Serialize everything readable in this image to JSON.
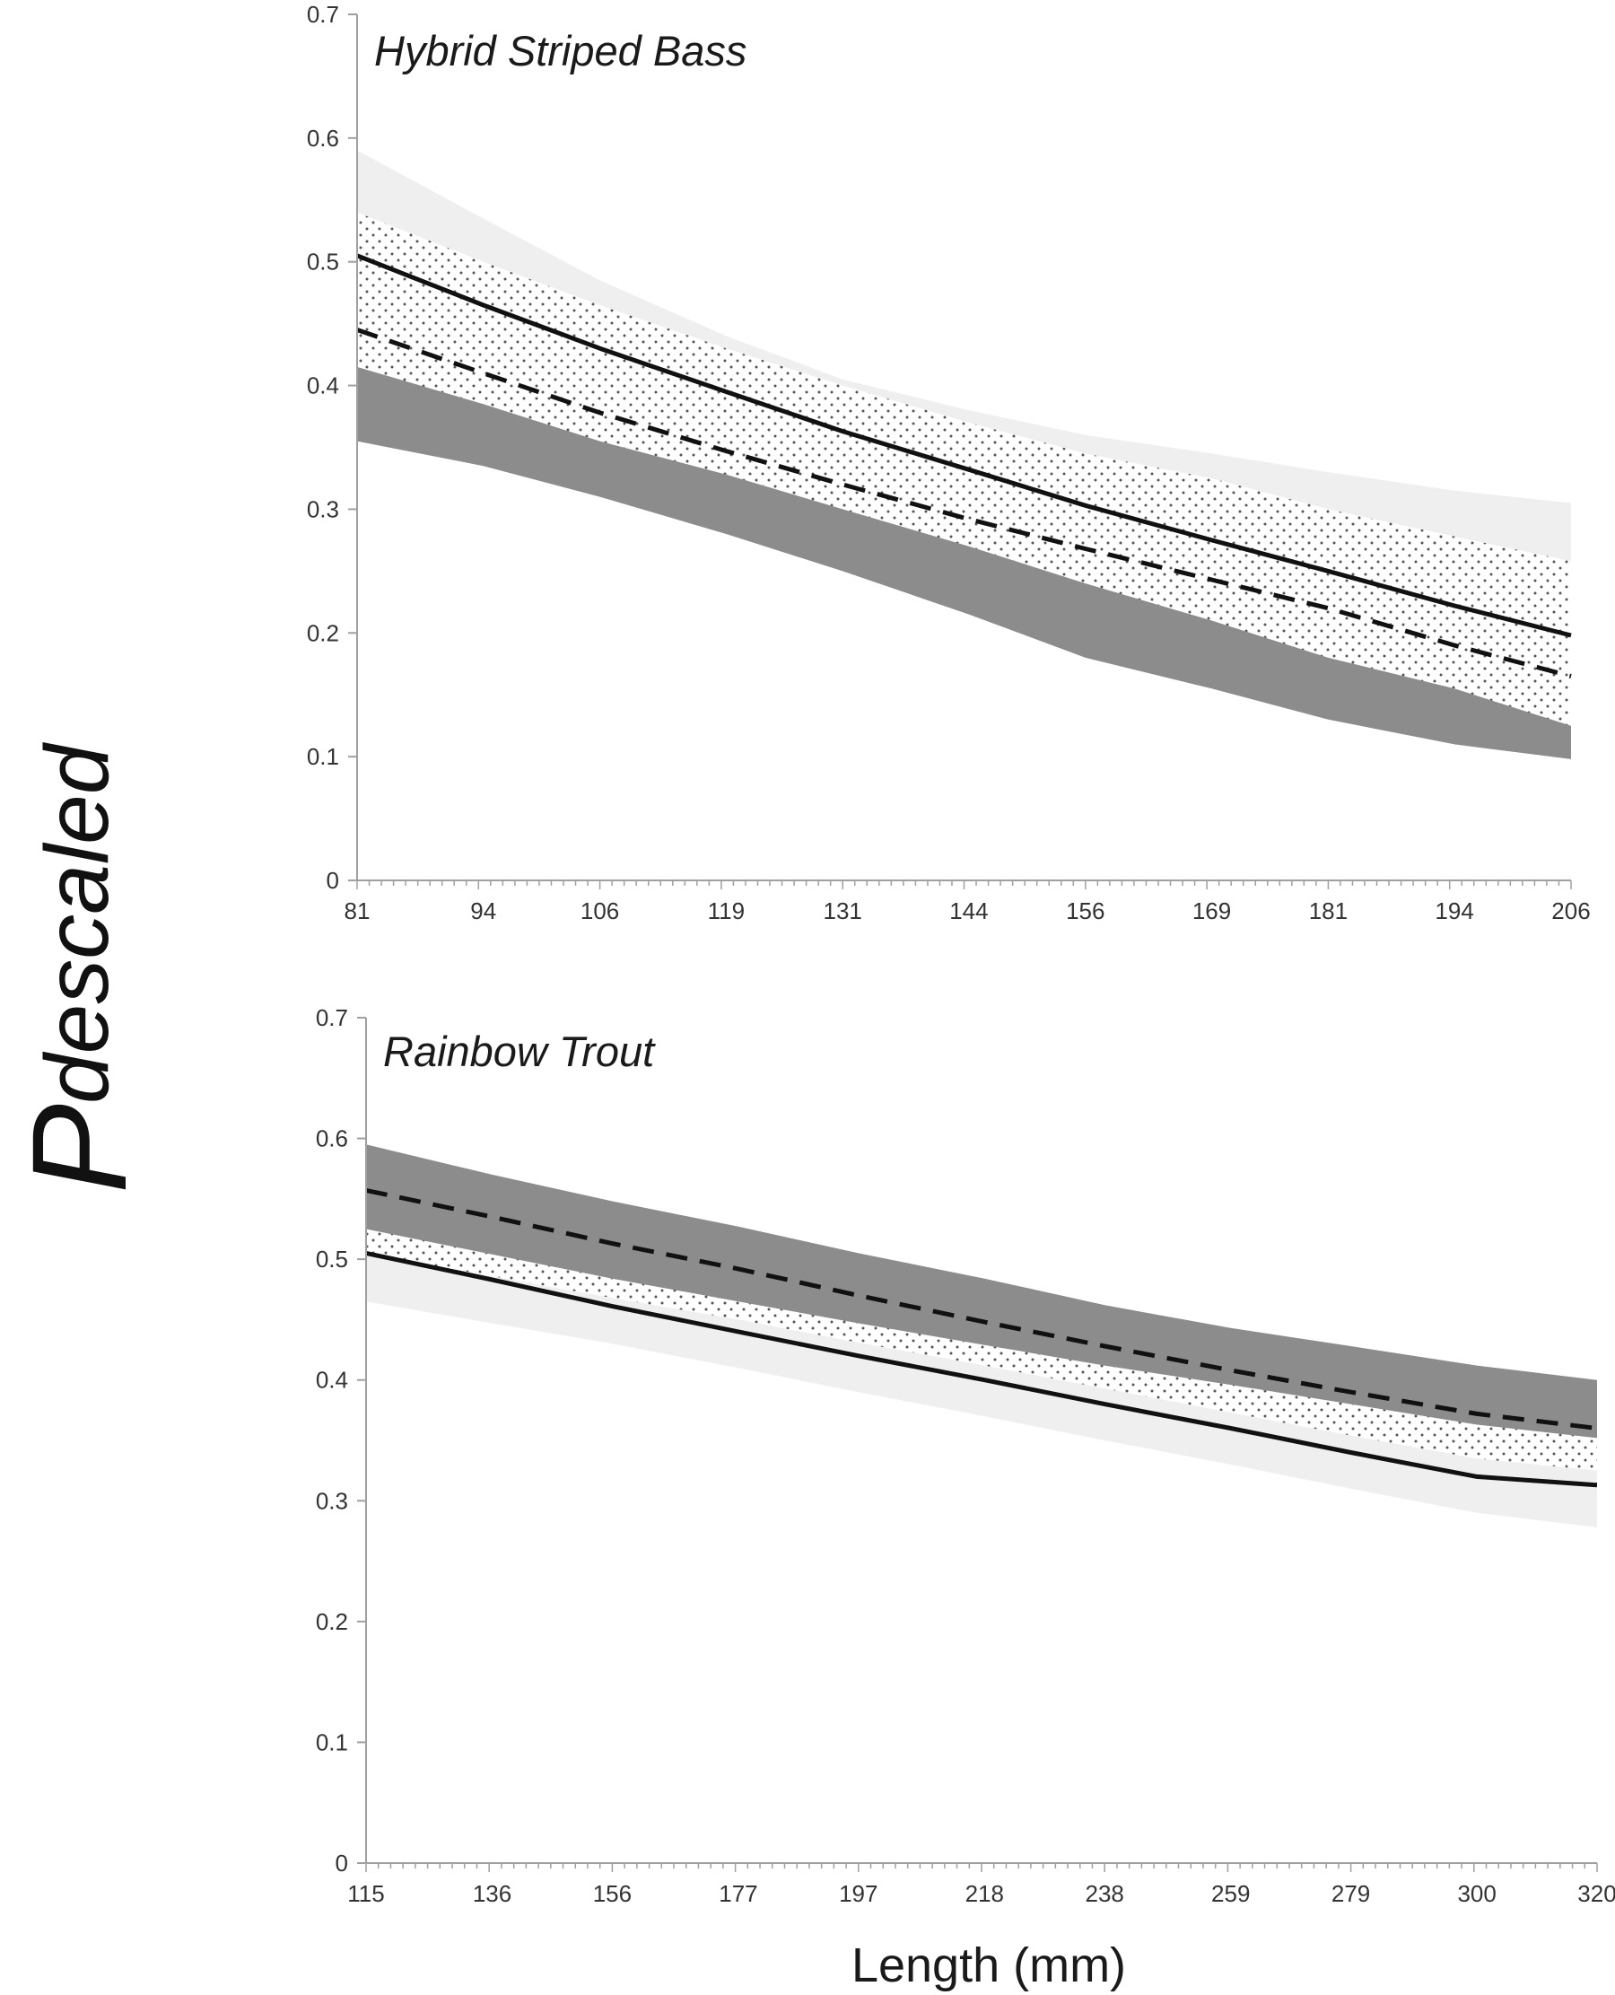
{
  "chart_data": [
    {
      "type": "line",
      "title": "Hybrid Striped Bass",
      "xlabel": "Length (mm)",
      "ylabel": "P",
      "ylabel_subscript": "descaled",
      "xlim": [
        81,
        206
      ],
      "ylim": [
        0,
        0.7
      ],
      "x_tick_labels": [
        "81",
        "94",
        "106",
        "119",
        "131",
        "144",
        "156",
        "169",
        "181",
        "194",
        "206"
      ],
      "y_tick_labels": [
        "0",
        "0.1",
        "0.2",
        "0.3",
        "0.4",
        "0.5",
        "0.6",
        "0.7"
      ],
      "grid": false,
      "x": [
        81,
        94,
        106,
        119,
        131,
        144,
        156,
        169,
        181,
        194,
        206
      ],
      "series": [
        {
          "style": "solid",
          "values": [
            0.505,
            0.465,
            0.43,
            0.395,
            0.363,
            0.332,
            0.303,
            0.275,
            0.25,
            0.222,
            0.198
          ]
        },
        {
          "style": "dashed",
          "values": [
            0.445,
            0.41,
            0.378,
            0.347,
            0.32,
            0.292,
            0.268,
            0.243,
            0.22,
            0.19,
            0.165
          ]
        }
      ],
      "bands": [
        {
          "fill": "light",
          "upper": [
            0.59,
            0.535,
            0.485,
            0.44,
            0.405,
            0.38,
            0.36,
            0.345,
            0.33,
            0.315,
            0.305
          ],
          "lower": [
            0.45,
            0.41,
            0.38,
            0.35,
            0.33,
            0.31,
            0.295,
            0.28,
            0.27,
            0.262,
            0.255
          ]
        },
        {
          "fill": "dotted",
          "upper": [
            0.54,
            0.5,
            0.465,
            0.43,
            0.4,
            0.37,
            0.345,
            0.325,
            0.3,
            0.278,
            0.258
          ],
          "lower": [
            0.39,
            0.36,
            0.335,
            0.305,
            0.275,
            0.245,
            0.215,
            0.19,
            0.165,
            0.145,
            0.125
          ]
        },
        {
          "fill": "dark",
          "upper": [
            0.415,
            0.385,
            0.355,
            0.328,
            0.3,
            0.27,
            0.24,
            0.21,
            0.18,
            0.155,
            0.125
          ],
          "lower": [
            0.355,
            0.335,
            0.31,
            0.28,
            0.25,
            0.215,
            0.18,
            0.155,
            0.13,
            0.11,
            0.098
          ]
        }
      ]
    },
    {
      "type": "line",
      "title": "Rainbow Trout",
      "xlabel": "Length (mm)",
      "ylabel": "P",
      "ylabel_subscript": "descaled",
      "xlim": [
        115,
        320
      ],
      "ylim": [
        0,
        0.7
      ],
      "x_tick_labels": [
        "115",
        "136",
        "156",
        "177",
        "197",
        "218",
        "238",
        "259",
        "279",
        "300",
        "320"
      ],
      "y_tick_labels": [
        "0",
        "0.1",
        "0.2",
        "0.3",
        "0.4",
        "0.5",
        "0.6",
        "0.7"
      ],
      "grid": false,
      "x": [
        115,
        136,
        156,
        177,
        197,
        218,
        238,
        259,
        279,
        300,
        320
      ],
      "series": [
        {
          "style": "solid",
          "values": [
            0.505,
            0.483,
            0.461,
            0.44,
            0.42,
            0.4,
            0.38,
            0.36,
            0.34,
            0.32,
            0.313
          ]
        },
        {
          "style": "dashed",
          "values": [
            0.557,
            0.535,
            0.513,
            0.492,
            0.47,
            0.448,
            0.428,
            0.408,
            0.39,
            0.372,
            0.36
          ]
        }
      ],
      "bands": [
        {
          "fill": "light",
          "upper": [
            0.535,
            0.51,
            0.49,
            0.47,
            0.45,
            0.43,
            0.41,
            0.392,
            0.375,
            0.36,
            0.35
          ],
          "lower": [
            0.465,
            0.447,
            0.43,
            0.41,
            0.39,
            0.37,
            0.35,
            0.33,
            0.31,
            0.29,
            0.278
          ]
        },
        {
          "fill": "dotted",
          "upper": [
            0.57,
            0.546,
            0.525,
            0.505,
            0.484,
            0.462,
            0.44,
            0.42,
            0.402,
            0.388,
            0.378
          ],
          "lower": [
            0.505,
            0.486,
            0.468,
            0.45,
            0.431,
            0.412,
            0.393,
            0.373,
            0.354,
            0.335,
            0.325
          ]
        },
        {
          "fill": "dark",
          "upper": [
            0.595,
            0.57,
            0.548,
            0.527,
            0.505,
            0.484,
            0.462,
            0.443,
            0.428,
            0.412,
            0.4
          ],
          "lower": [
            0.525,
            0.504,
            0.484,
            0.465,
            0.447,
            0.429,
            0.412,
            0.396,
            0.38,
            0.363,
            0.352
          ]
        }
      ]
    }
  ]
}
